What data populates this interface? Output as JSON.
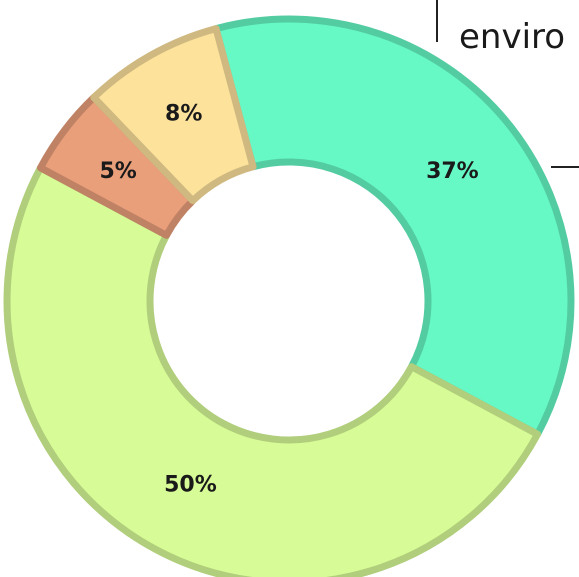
{
  "chart_data": {
    "type": "pie",
    "variant": "donut",
    "title": "",
    "slices": [
      {
        "label": "37%",
        "value": 37,
        "color": "#66f9c6"
      },
      {
        "label": "50%",
        "value": 50,
        "color": "#d7fb96"
      },
      {
        "label": "5%",
        "value": 5,
        "color": "#ea9f7b"
      },
      {
        "label": "8%",
        "value": 8,
        "color": "#fde29c"
      }
    ],
    "callout": {
      "text": "enviro"
    }
  }
}
